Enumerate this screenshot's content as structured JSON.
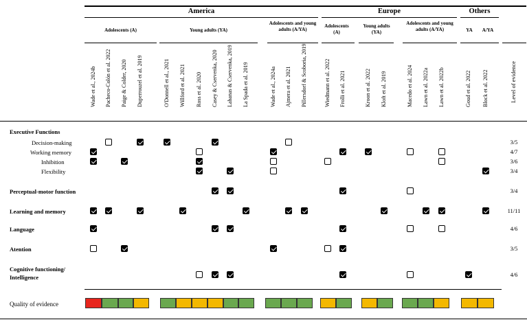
{
  "regions": [
    "America",
    "Europe",
    "Others"
  ],
  "groups": [
    "Adolescents (A)",
    "Young adults (YA)",
    "Adolescents and young adults (A/YA)",
    "Adolescents (A)",
    "Young adults (YA)",
    "Adolescents and young adults (A/YA)",
    "YA",
    "A/YA"
  ],
  "studies": [
    "Wade et al., 2024b",
    "Pacheco-Colón et al. 2022",
    "Paige & Colder, 2020",
    "Duperrouzel et al. 2019",
    "O'Donnell et al., 2021",
    "Willford et al. 2021",
    "Ross et al. 2020",
    "Casey & Cservenka, 2020",
    "Lahanas & Cservenka, 2019",
    "La Spada et al. 2019",
    "Wade et al., 2024a",
    "Ajmera et al. 2021",
    "Pillersdorf & Scoboria, 2019",
    "Wiedmann et al. 2022",
    "Frolli et al. 2021",
    "Kroon et al. 2022",
    "Kloft et al. 2019",
    "Macedo et al. 2024",
    "Lawn et al. 2022a",
    "Lawn et al. 2022b",
    "Goud et al. 2022",
    "Block et al. 2022"
  ],
  "level_header": "Level of evidence",
  "section_heading": "Executive Functions",
  "rows": [
    {
      "label": "Decision-making",
      "level": "3/5",
      "marks": [
        {
          "c": 1,
          "v": false
        },
        {
          "c": 3,
          "v": true
        },
        {
          "c": 4,
          "v": true
        },
        {
          "c": 7,
          "v": true
        },
        {
          "c": 11,
          "v": false
        }
      ]
    },
    {
      "label": "Working memory",
      "level": "4/7",
      "marks": [
        {
          "c": 0,
          "v": true
        },
        {
          "c": 6,
          "v": false
        },
        {
          "c": 10,
          "v": true
        },
        {
          "c": 14,
          "v": true
        },
        {
          "c": 15,
          "v": true
        },
        {
          "c": 17,
          "v": false
        },
        {
          "c": 19,
          "v": false
        }
      ]
    },
    {
      "label": "Inhibition",
      "level": "3/6",
      "marks": [
        {
          "c": 0,
          "v": true
        },
        {
          "c": 2,
          "v": true
        },
        {
          "c": 6,
          "v": true
        },
        {
          "c": 10,
          "v": false
        },
        {
          "c": 13,
          "v": false
        },
        {
          "c": 19,
          "v": false
        }
      ]
    },
    {
      "label": "Flexibility",
      "level": "3/4",
      "marks": [
        {
          "c": 6,
          "v": true
        },
        {
          "c": 8,
          "v": true
        },
        {
          "c": 10,
          "v": false
        },
        {
          "c": 21,
          "v": true
        }
      ]
    },
    {
      "label": "Perceptual-motor function",
      "level": "3/4",
      "marks": [
        {
          "c": 7,
          "v": true
        },
        {
          "c": 8,
          "v": true
        },
        {
          "c": 14,
          "v": true
        },
        {
          "c": 17,
          "v": false
        }
      ]
    },
    {
      "label": "Learning and memory",
      "level": "11/11",
      "marks": [
        {
          "c": 0,
          "v": true
        },
        {
          "c": 1,
          "v": true
        },
        {
          "c": 3,
          "v": true
        },
        {
          "c": 5,
          "v": true
        },
        {
          "c": 9,
          "v": true
        },
        {
          "c": 11,
          "v": true
        },
        {
          "c": 12,
          "v": true
        },
        {
          "c": 16,
          "v": true
        },
        {
          "c": 18,
          "v": true
        },
        {
          "c": 19,
          "v": true
        },
        {
          "c": 21,
          "v": true
        }
      ]
    },
    {
      "label": "Language",
      "level": "4/6",
      "marks": [
        {
          "c": 0,
          "v": true
        },
        {
          "c": 7,
          "v": true
        },
        {
          "c": 8,
          "v": true
        },
        {
          "c": 14,
          "v": true
        },
        {
          "c": 17,
          "v": false
        },
        {
          "c": 19,
          "v": false
        }
      ]
    },
    {
      "label": "Atention",
      "level": "3/5",
      "marks": [
        {
          "c": 0,
          "v": false
        },
        {
          "c": 2,
          "v": true
        },
        {
          "c": 10,
          "v": true
        },
        {
          "c": 13,
          "v": false
        },
        {
          "c": 14,
          "v": true
        }
      ]
    },
    {
      "label": "Cognitive functioning/ Intelligence",
      "level": "4/6",
      "marks": [
        {
          "c": 6,
          "v": false
        },
        {
          "c": 7,
          "v": true
        },
        {
          "c": 8,
          "v": true
        },
        {
          "c": 14,
          "v": true
        },
        {
          "c": 17,
          "v": false
        },
        {
          "c": 20,
          "v": true
        }
      ]
    }
  ],
  "quality_label": "Quality of evidence",
  "quality": [
    "red",
    "green",
    "green",
    "yellow",
    "green",
    "yellow",
    "yellow",
    "yellow",
    "green",
    "green",
    "green",
    "green",
    "green",
    "yellow",
    "green",
    "yellow",
    "green",
    "green",
    "green",
    "yellow",
    "yellow",
    "yellow"
  ],
  "colors": {
    "red": "#e8251d",
    "green": "#6aa84f",
    "yellow": "#f3b800",
    "check": "#000000"
  }
}
